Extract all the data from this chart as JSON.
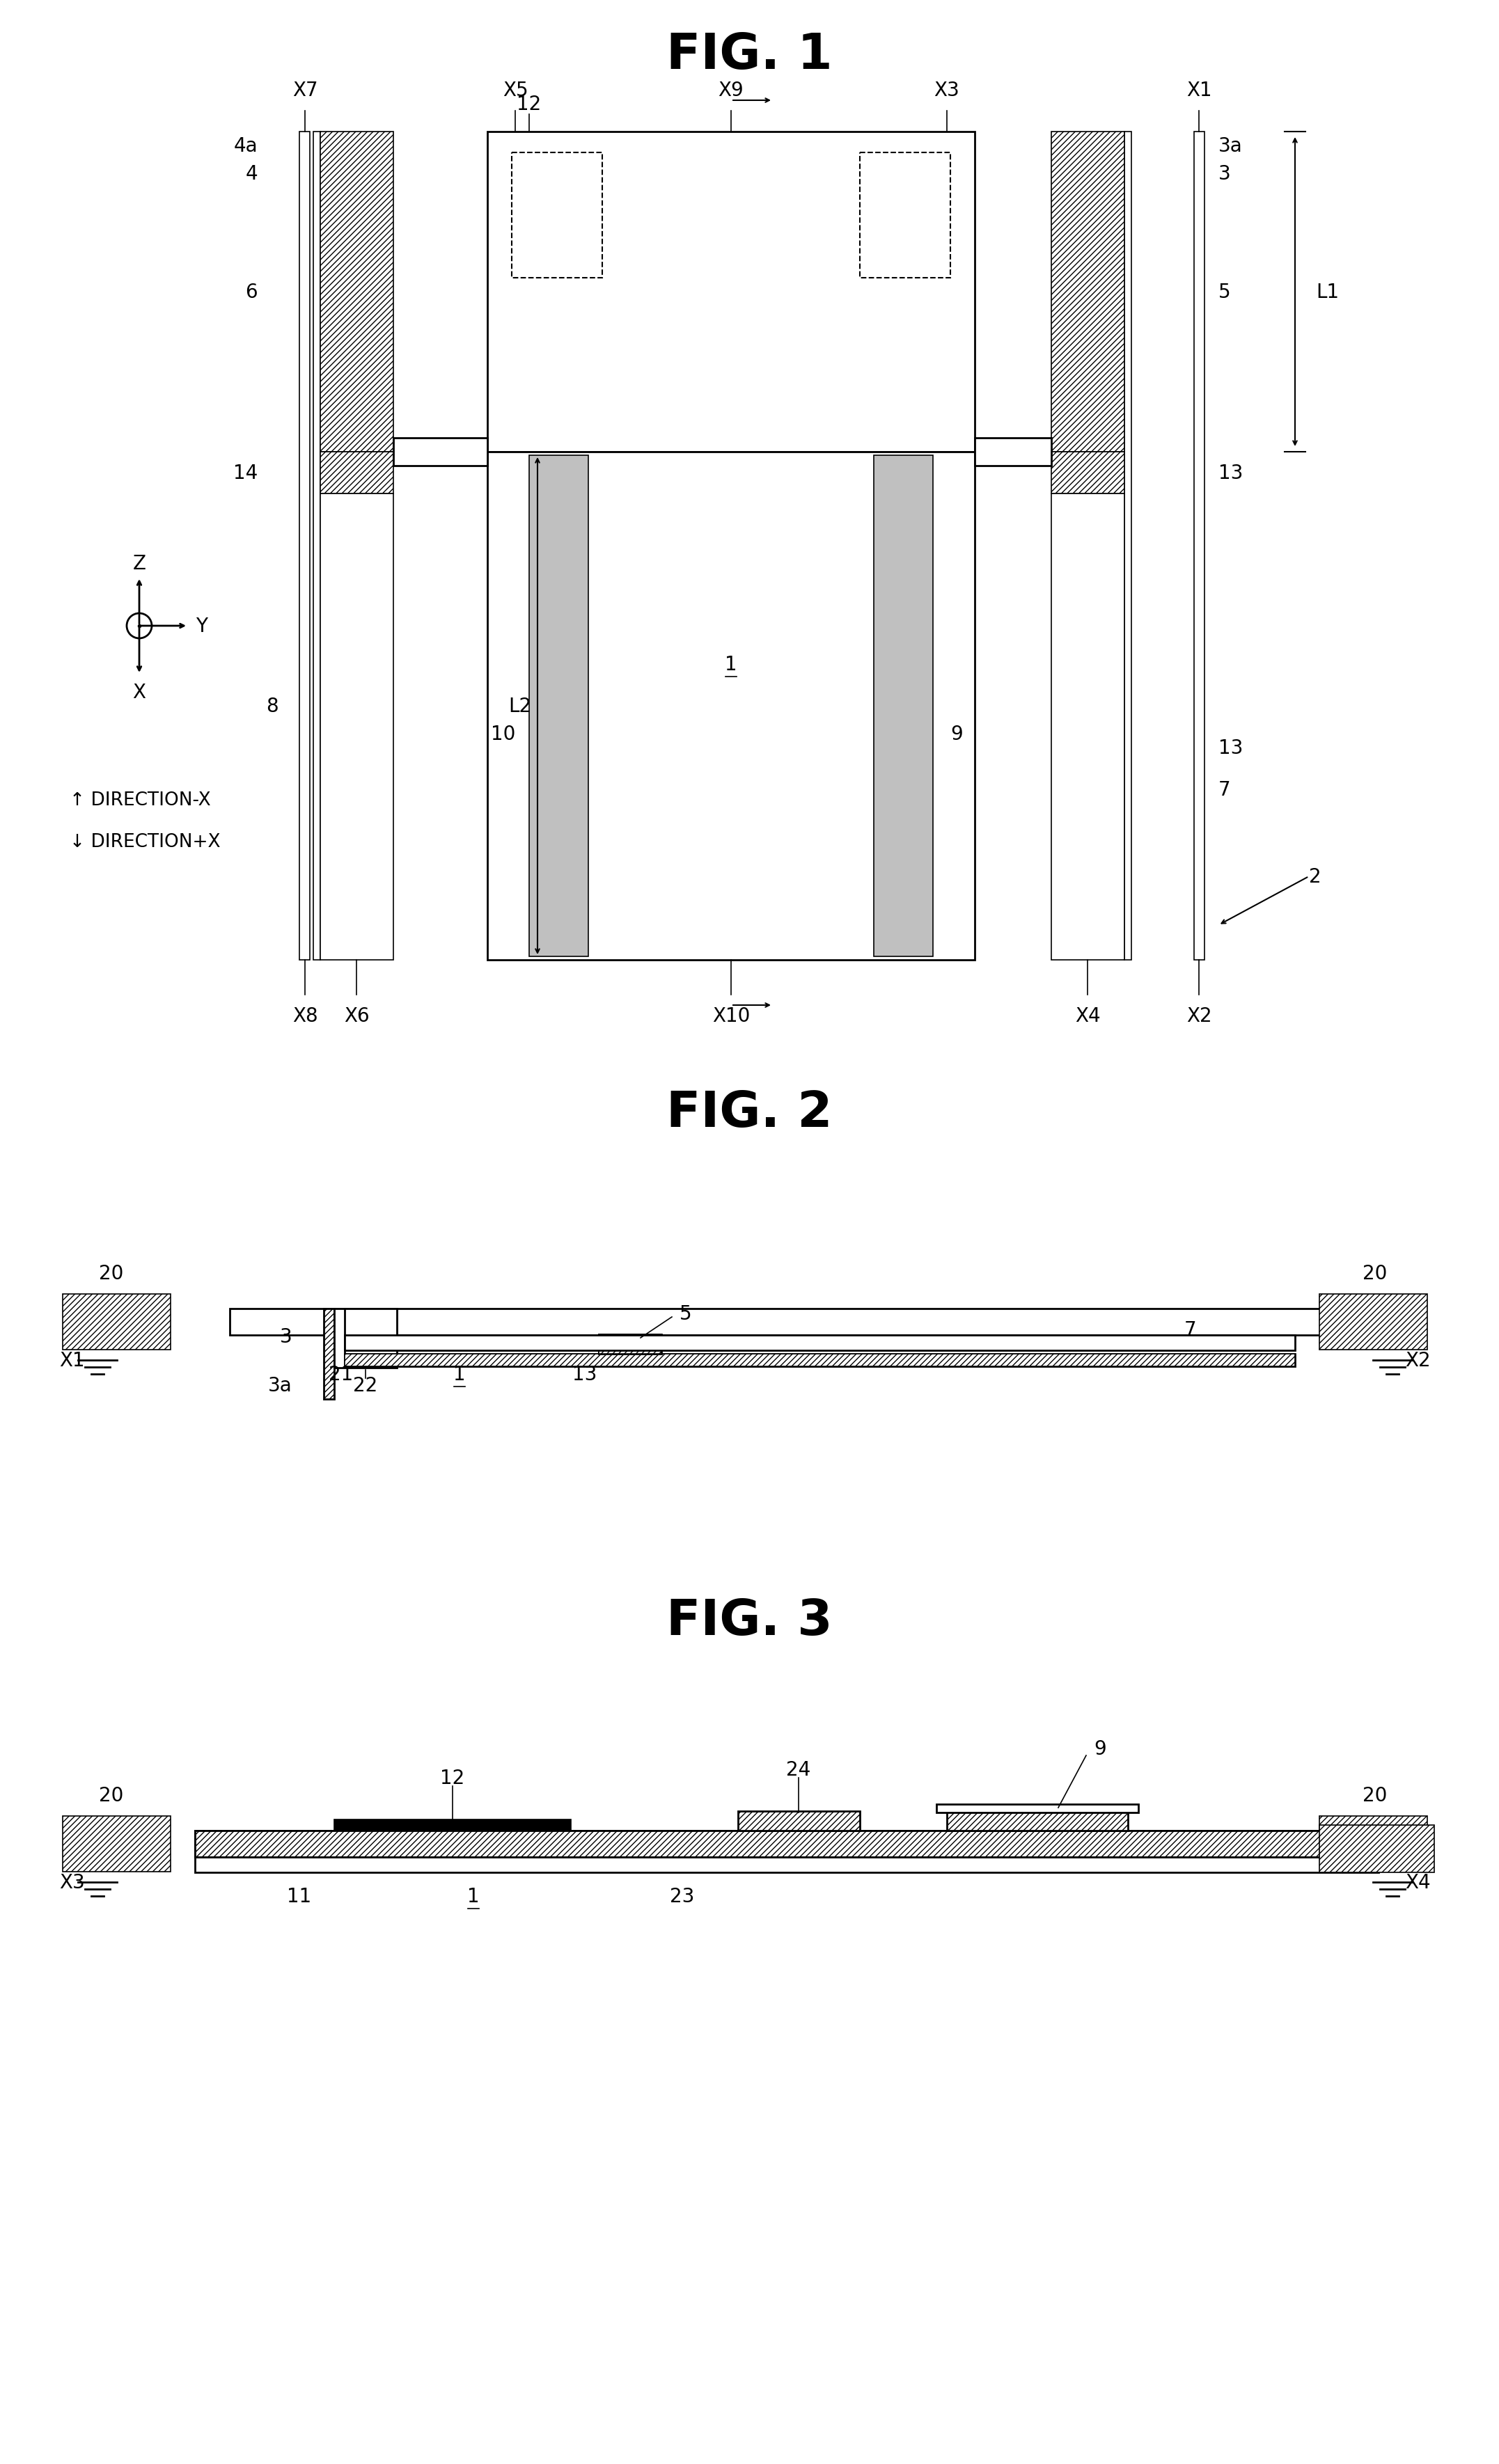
{
  "fig1_title": "FIG. 1",
  "fig2_title": "FIG. 2",
  "fig3_title": "FIG. 3",
  "bg_color": "#ffffff",
  "lw_main": 2.0,
  "lw_thin": 1.2,
  "fontsize_title": 52,
  "fontsize_label": 20,
  "gray_fill": "#c0c0c0"
}
